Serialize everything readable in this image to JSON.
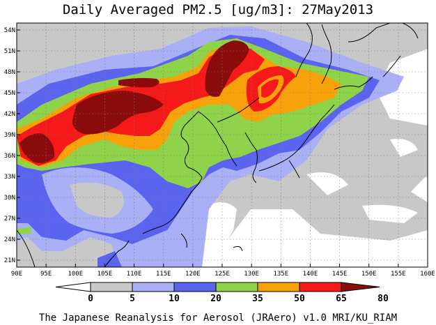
{
  "title": "Daily Averaged PM2.5 [ug/m3]: 27May2013",
  "footer": "The Japanese Reanalysis for Aerosol (JRAero) v1.0 MRI/KU_RIAM",
  "map": {
    "lon_labels": [
      "90E",
      "95E",
      "100E",
      "105E",
      "110E",
      "115E",
      "120E",
      "125E",
      "130E",
      "135E",
      "140E",
      "145E",
      "150E",
      "155E",
      "160E"
    ],
    "lat_labels": [
      "54N",
      "51N",
      "48N",
      "45N",
      "42N",
      "39N",
      "36N",
      "33N",
      "30N",
      "27N",
      "24N",
      "21N"
    ],
    "lon_values": [
      90,
      95,
      100,
      105,
      110,
      115,
      120,
      125,
      130,
      135,
      140,
      145,
      150,
      155,
      160
    ],
    "lat_values": [
      54,
      51,
      48,
      45,
      42,
      39,
      36,
      33,
      30,
      27,
      24,
      21
    ],
    "lon_range": [
      90,
      160
    ],
    "lat_range": [
      20,
      55
    ],
    "grid": "dotted"
  },
  "colorbar": {
    "labels": [
      "0",
      "5",
      "10",
      "20",
      "35",
      "50",
      "65",
      "80"
    ],
    "bins": [
      {
        "from": 0,
        "to": 5,
        "color": "#ffffff"
      },
      {
        "from": 5,
        "to": 10,
        "color": "#c8c8c8"
      },
      {
        "from": 10,
        "to": 20,
        "color": "#a9b0f6"
      },
      {
        "from": 20,
        "to": 35,
        "color": "#5a64ee"
      },
      {
        "from": 35,
        "to": 50,
        "color": "#8fd34a"
      },
      {
        "from": 50,
        "to": 65,
        "color": "#f7a20a"
      },
      {
        "from": 65,
        "to": 80,
        "color": "#f51919"
      },
      {
        "from": 80,
        "to": null,
        "color": "#8a0b0b"
      }
    ]
  }
}
